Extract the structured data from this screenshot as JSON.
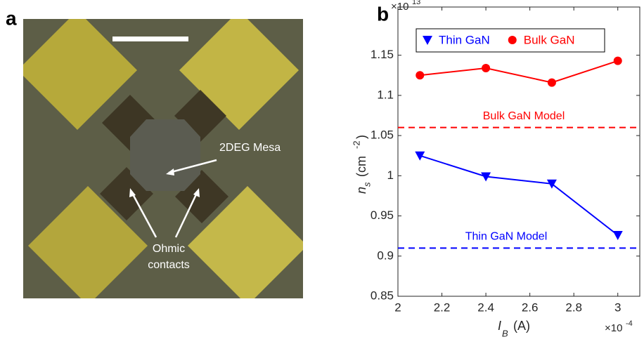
{
  "panel_labels": [
    "a",
    "b"
  ],
  "micrograph": {
    "mesa_label": "2DEG Mesa",
    "contact_label": [
      "Ohmic",
      "contacts"
    ]
  },
  "chart_data": {
    "type": "line",
    "x_label": {
      "main": "I",
      "sub": "B",
      "unit": "(A)"
    },
    "y_label": {
      "main": "n",
      "sub": "s",
      "unit": "(cm",
      "exp": "-2",
      "close": ")"
    },
    "x_multiplier": {
      "base": "×10",
      "exponent": "-4"
    },
    "y_multiplier": {
      "base": "×10",
      "exponent": "13"
    },
    "x": [
      2.1,
      2.4,
      2.7,
      3
    ],
    "series": [
      {
        "name": "Thin GaN",
        "color": "#0000ff",
        "marker": "triangle-down",
        "values": [
          1.025,
          0.999,
          0.99,
          0.926
        ]
      },
      {
        "name": "Bulk GaN",
        "color": "#ff0000",
        "marker": "circle",
        "values": [
          1.125,
          1.134,
          1.116,
          1.143
        ]
      }
    ],
    "reference_lines": [
      {
        "value": 1.06,
        "label": "Bulk GaN Model",
        "color": "#ff0000"
      },
      {
        "value": 0.91,
        "label": "Thin GaN Model",
        "color": "#0000ff"
      }
    ],
    "xlim": [
      2,
      3.1
    ],
    "ylim": [
      0.85,
      1.21
    ],
    "xticks": [
      2,
      2.2,
      2.4,
      2.6,
      2.8,
      3
    ],
    "yticks": [
      0.85,
      0.9,
      0.95,
      1,
      1.05,
      1.1,
      1.15
    ],
    "legend": "top"
  }
}
